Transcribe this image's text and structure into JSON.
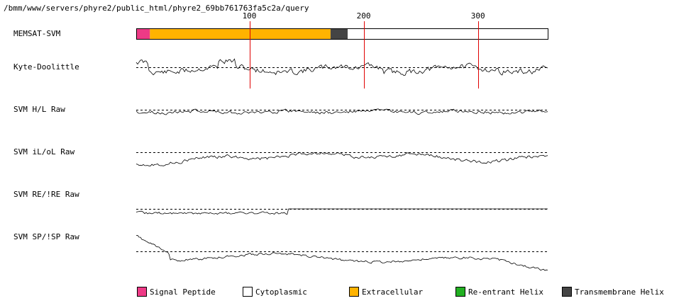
{
  "path": "/bmm/www/servers/phyre2/public_html/phyre2_69bb761763fa5c2a/query",
  "ruler": {
    "ticks": [
      "100",
      "200",
      "300"
    ],
    "tick_positions": [
      100,
      200,
      300
    ],
    "length": 361
  },
  "memsat": {
    "label": "MEMSAT-SVM",
    "segments": [
      {
        "type": "Signal Peptide",
        "start": 1,
        "end": 13,
        "color": "#ee3a86"
      },
      {
        "type": "Extracellular",
        "start": 13,
        "end": 171,
        "color": "#ffb300"
      },
      {
        "type": "Transmembrane Helix",
        "start": 171,
        "end": 186,
        "color": "#444444"
      },
      {
        "type": "Cytoplasmic",
        "start": 186,
        "end": 361,
        "color": "#ffffff"
      }
    ]
  },
  "tracks": [
    {
      "name": "kyte",
      "label": "Kyte-Doolittle"
    },
    {
      "name": "hl",
      "label": "SVM H/L Raw"
    },
    {
      "name": "iloL",
      "label": "SVM iL/oL Raw"
    },
    {
      "name": "reire",
      "label": "SVM RE/!RE Raw"
    },
    {
      "name": "spisp",
      "label": "SVM SP/!SP Raw"
    }
  ],
  "legend": [
    {
      "label": "Signal Peptide",
      "color": "#ee3a86"
    },
    {
      "label": "Cytoplasmic",
      "color": "#ffffff"
    },
    {
      "label": "Extracellular",
      "color": "#ffb300"
    },
    {
      "label": "Re-entrant Helix",
      "color": "#22b022"
    },
    {
      "label": "Transmembrane Helix",
      "color": "#444444"
    }
  ]
}
